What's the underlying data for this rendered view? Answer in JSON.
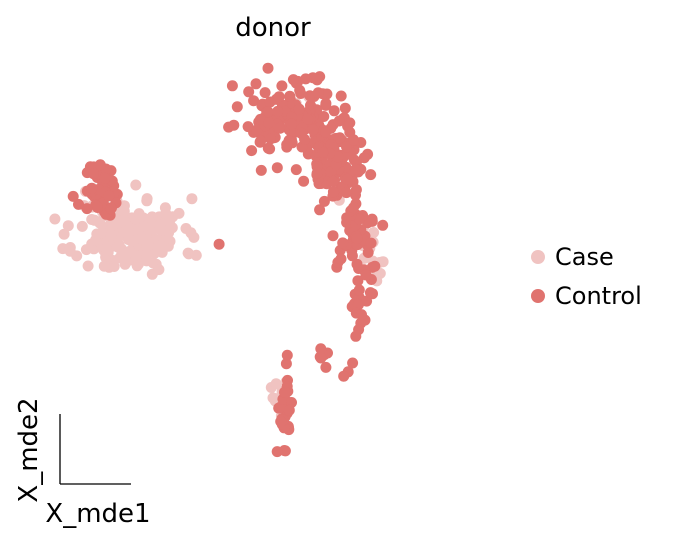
{
  "chart_data": {
    "type": "scatter",
    "title": "donor",
    "xlabel": "X_mde1",
    "ylabel": "X_mde2",
    "xlim": [
      0,
      100
    ],
    "ylim": [
      0,
      100
    ],
    "grid": false,
    "ticks": false,
    "legend": {
      "position": "right"
    },
    "series": [
      {
        "name": "Case",
        "color": "#f0c3c1",
        "clusters": [
          {
            "cx": 18,
            "cy": 59,
            "sx": 6.0,
            "sy": 4.2,
            "n": 190,
            "seed": 11
          },
          {
            "cx": 73,
            "cy": 54,
            "sx": 2.2,
            "sy": 3.5,
            "n": 14,
            "seed": 12
          },
          {
            "cx": 52,
            "cy": 23,
            "sx": 1.4,
            "sy": 3.0,
            "n": 8,
            "seed": 13
          },
          {
            "cx": 57,
            "cy": 87,
            "sx": 3.0,
            "sy": 2.0,
            "n": 6,
            "seed": 14
          }
        ],
        "points": [
          [
            8,
            69
          ],
          [
            29,
            64
          ],
          [
            26,
            64
          ],
          [
            52,
            18
          ],
          [
            65,
            67
          ]
        ]
      },
      {
        "name": "Control",
        "color": "#e0736f",
        "clusters": [
          {
            "cx": 12,
            "cy": 69,
            "sx": 2.2,
            "sy": 3.2,
            "n": 45,
            "seed": 21
          },
          {
            "cx": 55,
            "cy": 85,
            "sx": 5.0,
            "sy": 4.0,
            "n": 160,
            "seed": 22
          },
          {
            "cx": 64,
            "cy": 75,
            "sx": 3.2,
            "sy": 4.0,
            "n": 90,
            "seed": 23
          },
          {
            "cx": 68,
            "cy": 58,
            "sx": 2.2,
            "sy": 4.0,
            "n": 45,
            "seed": 24
          },
          {
            "cx": 70,
            "cy": 44,
            "sx": 1.3,
            "sy": 4.0,
            "n": 22,
            "seed": 25
          },
          {
            "cx": 53,
            "cy": 21,
            "sx": 0.8,
            "sy": 5.5,
            "n": 30,
            "seed": 26
          },
          {
            "cx": 61,
            "cy": 32,
            "sx": 1.2,
            "sy": 0.8,
            "n": 5,
            "seed": 27
          }
        ],
        "points": [
          [
            38,
            57
          ],
          [
            49,
            97
          ],
          [
            41,
            93
          ],
          [
            67,
            28
          ],
          [
            66,
            27
          ],
          [
            62,
            29
          ],
          [
            68,
            30
          ],
          [
            70,
            41
          ],
          [
            72,
            46
          ],
          [
            71,
            50
          ],
          [
            73,
            52
          ],
          [
            62,
            89
          ]
        ]
      }
    ]
  }
}
